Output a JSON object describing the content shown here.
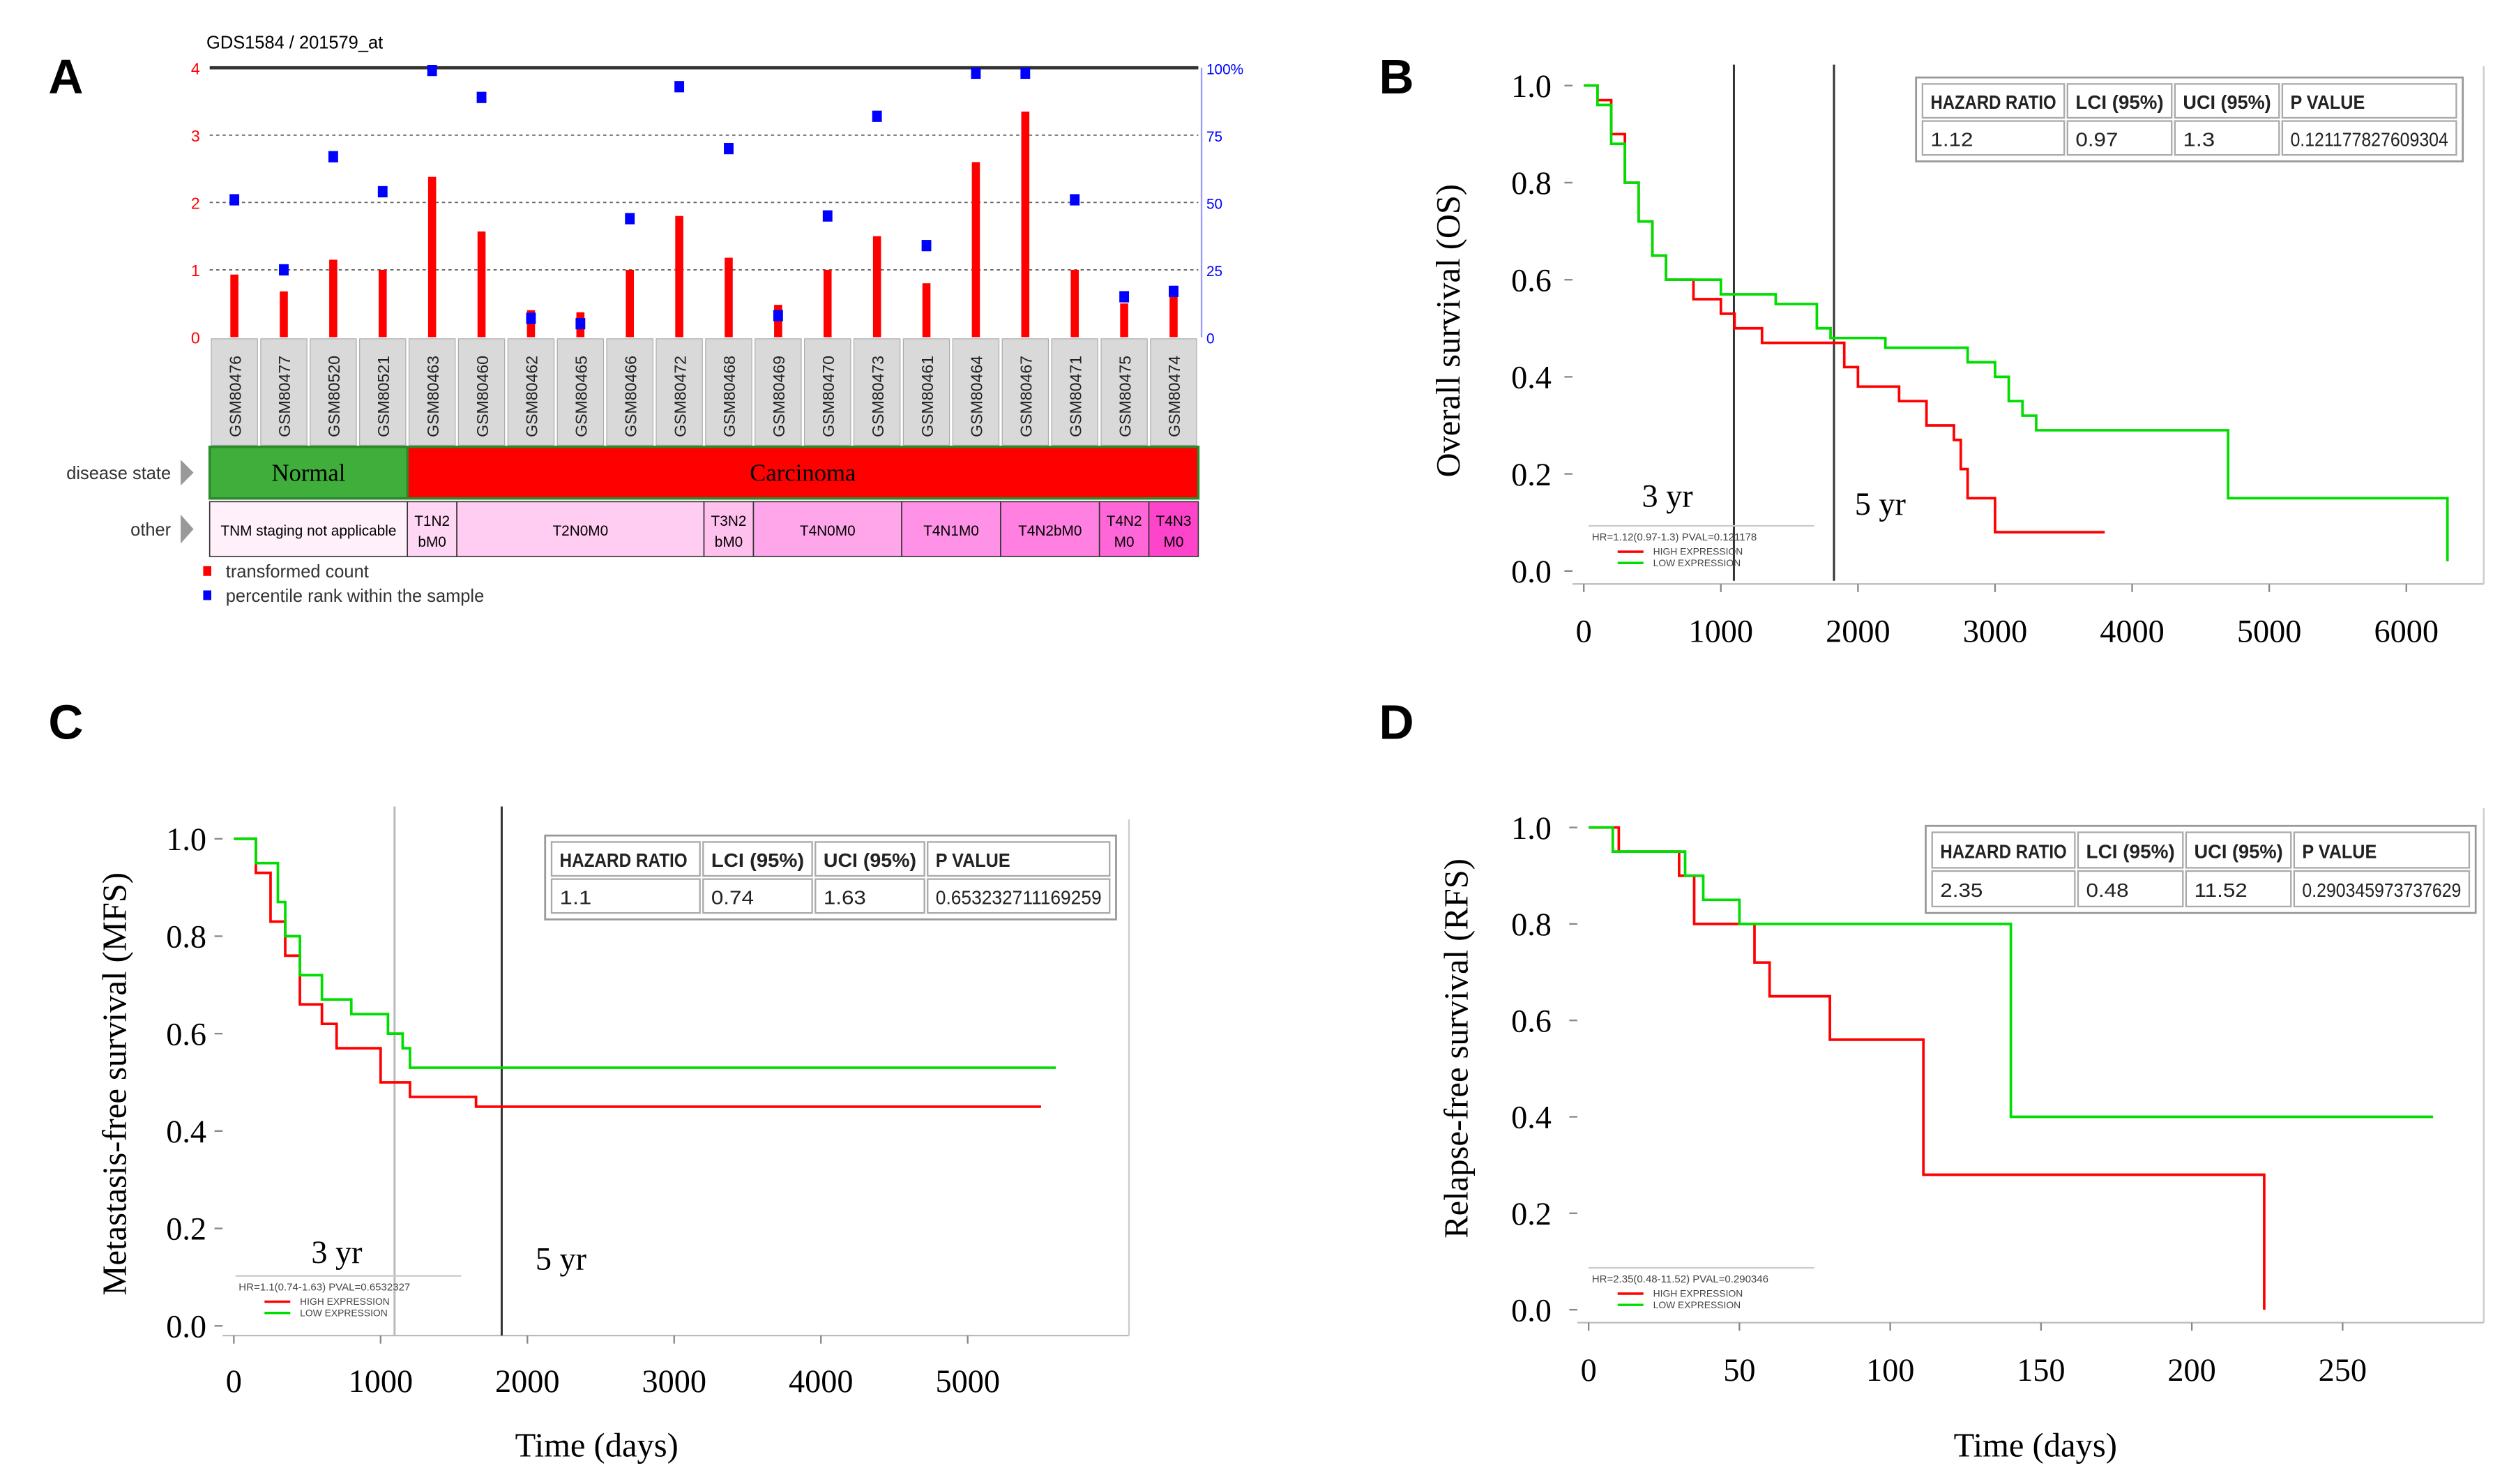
{
  "panel_labels": [
    "A",
    "B",
    "C",
    "D"
  ],
  "chart_data": [
    {
      "type": "bar",
      "panel": "A",
      "title": "GDS1584 / 201579_at",
      "left_axis": {
        "ticks": [
          "0",
          "1",
          "2",
          "3",
          "4"
        ],
        "ylim": [
          0,
          4
        ],
        "color": "#ff0000"
      },
      "right_axis": {
        "ticks": [
          "0",
          "25",
          "50",
          "75",
          "100%"
        ],
        "ylim": [
          0,
          100
        ],
        "color": "#0000ff"
      },
      "categories": [
        "GSM80476",
        "GSM80477",
        "GSM80520",
        "GSM80521",
        "GSM80463",
        "GSM80460",
        "GSM80462",
        "GSM80465",
        "GSM80466",
        "GSM80472",
        "GSM80468",
        "GSM80469",
        "GSM80470",
        "GSM80473",
        "GSM80461",
        "GSM80464",
        "GSM80467",
        "GSM80471",
        "GSM80475",
        "GSM80474"
      ],
      "series": [
        {
          "name": "transformed count",
          "color": "#ff0000",
          "values": [
            0.93,
            0.68,
            1.15,
            1.0,
            2.38,
            1.57,
            0.4,
            0.37,
            1.0,
            1.8,
            1.18,
            0.48,
            1.0,
            1.5,
            0.8,
            2.6,
            3.35,
            1.0,
            0.5,
            0.62
          ]
        },
        {
          "name": "percentile rank within the sample",
          "color": "#0000ff",
          "values": [
            51,
            25,
            67,
            54,
            99,
            89,
            7,
            5,
            44,
            93,
            70,
            8,
            45,
            82,
            34,
            98,
            98,
            51,
            15,
            17
          ]
        }
      ],
      "tracks": [
        {
          "label": "disease state",
          "groups": [
            {
              "text": "Normal",
              "span": 4,
              "color": "#3fae3a"
            },
            {
              "text": "Carcinoma",
              "span": 16,
              "color": "#ff0000"
            }
          ]
        },
        {
          "label": "other",
          "groups": [
            {
              "text": "TNM staging not applicable",
              "span": 4,
              "color": "#fff0fa"
            },
            {
              "text": "T1N2 bM0",
              "span": 1,
              "color": "#ffd6f4"
            },
            {
              "text": "T2N0M0",
              "span": 5,
              "color": "#ffccf2"
            },
            {
              "text": "T3N2 bM0",
              "span": 1,
              "color": "#ffc0ee"
            },
            {
              "text": "T4N0M0",
              "span": 3,
              "color": "#ffa6ea"
            },
            {
              "text": "T4N1M0",
              "span": 2,
              "color": "#ff92e6"
            },
            {
              "text": "T4N2bM0",
              "span": 2,
              "color": "#ff80e0"
            },
            {
              "text": "T4N2 M0",
              "span": 1,
              "color": "#ff66d8"
            },
            {
              "text": "T4N3 M0",
              "span": 1,
              "color": "#ff44cc"
            }
          ]
        }
      ]
    },
    {
      "type": "line",
      "panel": "B",
      "ylabel": "Overall survival (OS)",
      "xlabel": "",
      "xlim": [
        0,
        6500
      ],
      "ylim": [
        0,
        1
      ],
      "xticks": [
        "0",
        "1000",
        "2000",
        "3000",
        "4000",
        "5000",
        "6000"
      ],
      "yticks": [
        "0.0",
        "0.2",
        "0.4",
        "0.6",
        "0.8",
        "1.0"
      ],
      "markers": [
        {
          "x": 1095,
          "label": "3 yr"
        },
        {
          "x": 1825,
          "label": "5 yr"
        }
      ],
      "table": {
        "headers": [
          "HAZARD RATIO",
          "LCI (95%)",
          "UCI (95%)",
          "P VALUE"
        ],
        "values": [
          "1.12",
          "0.97",
          "1.3",
          "0.121177827609304"
        ]
      },
      "legend": {
        "summary": "HR=1.12(0.97-1.3) PVAL=0.121178",
        "items": [
          "HIGH EXPRESSION",
          "LOW EXPRESSION"
        ]
      },
      "series": [
        {
          "name": "HIGH EXPRESSION",
          "color": "#ff0000",
          "x": [
            0,
            100,
            200,
            300,
            400,
            500,
            600,
            800,
            1000,
            1100,
            1300,
            1800,
            1900,
            2000,
            2300,
            2500,
            2700,
            2750,
            2800,
            3000,
            3800
          ],
          "y": [
            1,
            0.97,
            0.9,
            0.8,
            0.72,
            0.65,
            0.6,
            0.56,
            0.53,
            0.5,
            0.47,
            0.47,
            0.42,
            0.38,
            0.35,
            0.3,
            0.27,
            0.21,
            0.15,
            0.08,
            0.08
          ]
        },
        {
          "name": "LOW EXPRESSION",
          "color": "#00dd00",
          "x": [
            0,
            100,
            200,
            300,
            400,
            500,
            600,
            1000,
            1400,
            1700,
            1800,
            2200,
            2800,
            3000,
            3100,
            3200,
            3300,
            4700,
            6300,
            6300
          ],
          "y": [
            1,
            0.96,
            0.88,
            0.8,
            0.72,
            0.65,
            0.6,
            0.57,
            0.55,
            0.5,
            0.48,
            0.46,
            0.43,
            0.4,
            0.35,
            0.32,
            0.29,
            0.15,
            0.15,
            0.02
          ]
        }
      ]
    },
    {
      "type": "line",
      "panel": "C",
      "ylabel": "Metastasis-free survival (MFS)",
      "xlabel": "Time (days)",
      "xlim": [
        0,
        6000
      ],
      "ylim": [
        0,
        1
      ],
      "xticks": [
        "0",
        "1000",
        "2000",
        "3000",
        "4000",
        "5000"
      ],
      "yticks": [
        "0.0",
        "0.2",
        "0.4",
        "0.6",
        "0.8",
        "1.0"
      ],
      "markers": [
        {
          "x": 1095,
          "label": "3 yr"
        },
        {
          "x": 1825,
          "label": "5 yr"
        }
      ],
      "table": {
        "headers": [
          "HAZARD RATIO",
          "LCI (95%)",
          "UCI (95%)",
          "P VALUE"
        ],
        "values": [
          "1.1",
          "0.74",
          "1.63",
          "0.653232711169259"
        ]
      },
      "legend": {
        "summary": "HR=1.1(0.74-1.63) PVAL=0.6532327",
        "items": [
          "HIGH EXPRESSION",
          "LOW EXPRESSION"
        ]
      },
      "series": [
        {
          "name": "HIGH EXPRESSION",
          "color": "#ff0000",
          "x": [
            0,
            150,
            250,
            350,
            450,
            600,
            700,
            1000,
            1200,
            1650,
            5500
          ],
          "y": [
            1,
            0.93,
            0.83,
            0.76,
            0.66,
            0.62,
            0.57,
            0.5,
            0.47,
            0.45,
            0.45
          ]
        },
        {
          "name": "LOW EXPRESSION",
          "color": "#00dd00",
          "x": [
            0,
            150,
            300,
            350,
            450,
            600,
            800,
            1050,
            1150,
            1200,
            5600
          ],
          "y": [
            1,
            0.95,
            0.87,
            0.8,
            0.72,
            0.67,
            0.64,
            0.6,
            0.57,
            0.53,
            0.53
          ]
        }
      ]
    },
    {
      "type": "line",
      "panel": "D",
      "ylabel": "Relapse-free survival (RFS)",
      "xlabel": "Time (days)",
      "xlim": [
        0,
        295
      ],
      "ylim": [
        0,
        1
      ],
      "xticks": [
        "0",
        "50",
        "100",
        "150",
        "200",
        "250"
      ],
      "yticks": [
        "0.0",
        "0.2",
        "0.4",
        "0.6",
        "0.8",
        "1.0"
      ],
      "markers": [],
      "table": {
        "headers": [
          "HAZARD RATIO",
          "LCI (95%)",
          "UCI (95%)",
          "P VALUE"
        ],
        "values": [
          "2.35",
          "0.48",
          "11.52",
          "0.290345973737629"
        ]
      },
      "legend": {
        "summary": "HR=2.35(0.48-11.52) PVAL=0.290346",
        "items": [
          "HIGH EXPRESSION",
          "LOW EXPRESSION"
        ]
      },
      "series": [
        {
          "name": "HIGH EXPRESSION",
          "color": "#ff0000",
          "x": [
            0,
            10,
            30,
            35,
            55,
            60,
            80,
            111,
            224,
            224
          ],
          "y": [
            1,
            0.95,
            0.9,
            0.8,
            0.72,
            0.65,
            0.56,
            0.28,
            0.28,
            0
          ]
        },
        {
          "name": "LOW EXPRESSION",
          "color": "#00dd00",
          "x": [
            0,
            8,
            32,
            38,
            50,
            140,
            280
          ],
          "y": [
            1,
            0.95,
            0.9,
            0.85,
            0.8,
            0.4,
            0.4
          ]
        }
      ]
    }
  ]
}
